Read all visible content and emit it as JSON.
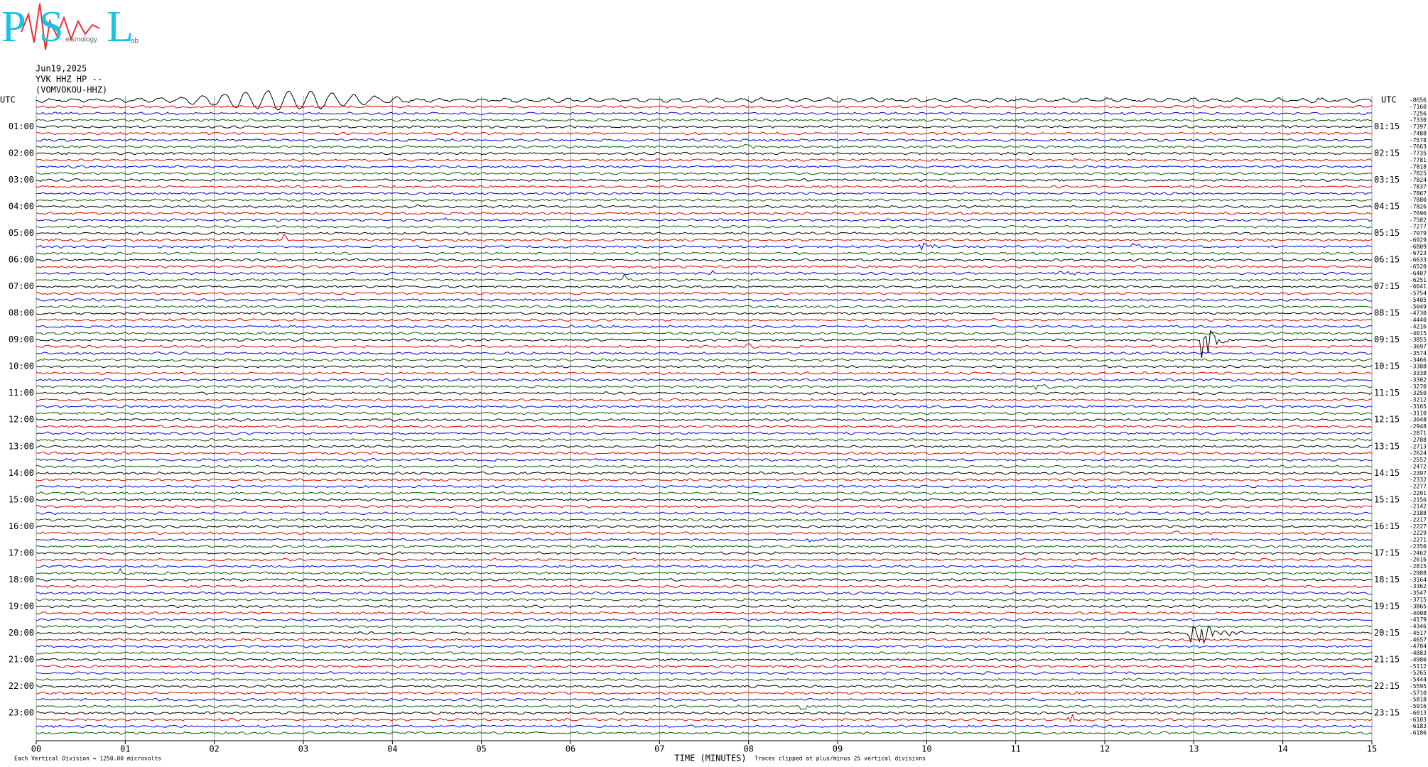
{
  "logo": {
    "letters": [
      "P",
      "S",
      "L"
    ],
    "small": [
      "eismology",
      "ab"
    ]
  },
  "header": {
    "date": "Jun19,2025",
    "station": "YVK HHZ HP --",
    "name": "(VOMVOKOU-HHZ)"
  },
  "left_labels": [
    "UTC",
    "01:00",
    "02:00",
    "03:00",
    "04:00",
    "05:00",
    "06:00",
    "07:00",
    "08:00",
    "09:00",
    "10:00",
    "11:00",
    "12:00",
    "13:00",
    "14:00",
    "15:00",
    "16:00",
    "17:00",
    "18:00",
    "19:00",
    "20:00",
    "21:00",
    "22:00",
    "23:00"
  ],
  "right_labels": [
    "UTC",
    "01:15",
    "02:15",
    "03:15",
    "04:15",
    "05:15",
    "06:15",
    "07:15",
    "08:15",
    "09:15",
    "10:15",
    "11:15",
    "12:15",
    "13:15",
    "14:15",
    "15:15",
    "16:15",
    "17:15",
    "18:15",
    "19:15",
    "20:15",
    "21:15",
    "22:15",
    "23:15"
  ],
  "row_offsets": [
    -8656,
    -7160,
    -7256,
    -7330,
    -7397,
    -7488,
    -7578,
    -7663,
    -7735,
    -7781,
    -7818,
    -7825,
    -7824,
    -7837,
    -7867,
    -7880,
    -7826,
    -7696,
    -7582,
    -7277,
    -7079,
    -6929,
    -6809,
    -6723,
    -6633,
    -6520,
    -6407,
    -6251,
    -6041,
    -5754,
    -5405,
    -5049,
    -4730,
    -4440,
    -4216,
    -4015,
    -3855,
    -3697,
    -3574,
    -3466,
    -3388,
    -3338,
    -3302,
    -3270,
    -3250,
    -3212,
    -3165,
    -3110,
    -3048,
    -2948,
    -2871,
    -2788,
    -2713,
    -2624,
    -2552,
    -2472,
    -2397,
    -2332,
    -2277,
    -2201,
    -2156,
    -2142,
    -2188,
    -2217,
    -2227,
    -2229,
    -2271,
    -2350,
    -2462,
    -2616,
    -2815,
    -2988,
    -3164,
    -3362,
    -3547,
    -3715,
    -3865,
    -4008,
    -4179,
    -4346,
    -4517,
    -4657,
    -4784,
    -4883,
    -4980,
    -5112,
    -5265,
    -5444,
    -5595,
    -5710,
    -5818,
    -5916,
    -6013,
    -6103,
    -6183,
    -6186
  ],
  "x_ticks": [
    "00",
    "01",
    "02",
    "03",
    "04",
    "05",
    "06",
    "07",
    "08",
    "09",
    "10",
    "11",
    "12",
    "13",
    "14",
    "15"
  ],
  "x_axis_title": "TIME (MINUTES)",
  "footer_left": "Each Vertical Division = 1250.00 microvolts",
  "footer_right": "Traces clipped at plus/minus 25 vertical divisions"
}
